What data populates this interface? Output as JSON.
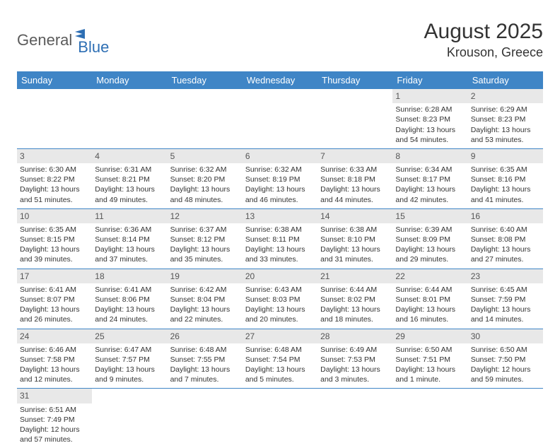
{
  "logo": {
    "text1": "General",
    "text2": "Blue"
  },
  "title": "August 2025",
  "location": "Krouson, Greece",
  "colors": {
    "header_bg": "#3f85c6",
    "header_text": "#ffffff",
    "daynum_bg": "#e8e8e8",
    "body_text": "#333333",
    "rule": "#3f85c6",
    "logo_gray": "#5b5b5b",
    "logo_blue": "#2e6fb4"
  },
  "weekdays": [
    "Sunday",
    "Monday",
    "Tuesday",
    "Wednesday",
    "Thursday",
    "Friday",
    "Saturday"
  ],
  "weeks": [
    [
      null,
      null,
      null,
      null,
      null,
      {
        "n": "1",
        "sr": "Sunrise: 6:28 AM",
        "ss": "Sunset: 8:23 PM",
        "d1": "Daylight: 13 hours",
        "d2": "and 54 minutes."
      },
      {
        "n": "2",
        "sr": "Sunrise: 6:29 AM",
        "ss": "Sunset: 8:23 PM",
        "d1": "Daylight: 13 hours",
        "d2": "and 53 minutes."
      }
    ],
    [
      {
        "n": "3",
        "sr": "Sunrise: 6:30 AM",
        "ss": "Sunset: 8:22 PM",
        "d1": "Daylight: 13 hours",
        "d2": "and 51 minutes."
      },
      {
        "n": "4",
        "sr": "Sunrise: 6:31 AM",
        "ss": "Sunset: 8:21 PM",
        "d1": "Daylight: 13 hours",
        "d2": "and 49 minutes."
      },
      {
        "n": "5",
        "sr": "Sunrise: 6:32 AM",
        "ss": "Sunset: 8:20 PM",
        "d1": "Daylight: 13 hours",
        "d2": "and 48 minutes."
      },
      {
        "n": "6",
        "sr": "Sunrise: 6:32 AM",
        "ss": "Sunset: 8:19 PM",
        "d1": "Daylight: 13 hours",
        "d2": "and 46 minutes."
      },
      {
        "n": "7",
        "sr": "Sunrise: 6:33 AM",
        "ss": "Sunset: 8:18 PM",
        "d1": "Daylight: 13 hours",
        "d2": "and 44 minutes."
      },
      {
        "n": "8",
        "sr": "Sunrise: 6:34 AM",
        "ss": "Sunset: 8:17 PM",
        "d1": "Daylight: 13 hours",
        "d2": "and 42 minutes."
      },
      {
        "n": "9",
        "sr": "Sunrise: 6:35 AM",
        "ss": "Sunset: 8:16 PM",
        "d1": "Daylight: 13 hours",
        "d2": "and 41 minutes."
      }
    ],
    [
      {
        "n": "10",
        "sr": "Sunrise: 6:35 AM",
        "ss": "Sunset: 8:15 PM",
        "d1": "Daylight: 13 hours",
        "d2": "and 39 minutes."
      },
      {
        "n": "11",
        "sr": "Sunrise: 6:36 AM",
        "ss": "Sunset: 8:14 PM",
        "d1": "Daylight: 13 hours",
        "d2": "and 37 minutes."
      },
      {
        "n": "12",
        "sr": "Sunrise: 6:37 AM",
        "ss": "Sunset: 8:12 PM",
        "d1": "Daylight: 13 hours",
        "d2": "and 35 minutes."
      },
      {
        "n": "13",
        "sr": "Sunrise: 6:38 AM",
        "ss": "Sunset: 8:11 PM",
        "d1": "Daylight: 13 hours",
        "d2": "and 33 minutes."
      },
      {
        "n": "14",
        "sr": "Sunrise: 6:38 AM",
        "ss": "Sunset: 8:10 PM",
        "d1": "Daylight: 13 hours",
        "d2": "and 31 minutes."
      },
      {
        "n": "15",
        "sr": "Sunrise: 6:39 AM",
        "ss": "Sunset: 8:09 PM",
        "d1": "Daylight: 13 hours",
        "d2": "and 29 minutes."
      },
      {
        "n": "16",
        "sr": "Sunrise: 6:40 AM",
        "ss": "Sunset: 8:08 PM",
        "d1": "Daylight: 13 hours",
        "d2": "and 27 minutes."
      }
    ],
    [
      {
        "n": "17",
        "sr": "Sunrise: 6:41 AM",
        "ss": "Sunset: 8:07 PM",
        "d1": "Daylight: 13 hours",
        "d2": "and 26 minutes."
      },
      {
        "n": "18",
        "sr": "Sunrise: 6:41 AM",
        "ss": "Sunset: 8:06 PM",
        "d1": "Daylight: 13 hours",
        "d2": "and 24 minutes."
      },
      {
        "n": "19",
        "sr": "Sunrise: 6:42 AM",
        "ss": "Sunset: 8:04 PM",
        "d1": "Daylight: 13 hours",
        "d2": "and 22 minutes."
      },
      {
        "n": "20",
        "sr": "Sunrise: 6:43 AM",
        "ss": "Sunset: 8:03 PM",
        "d1": "Daylight: 13 hours",
        "d2": "and 20 minutes."
      },
      {
        "n": "21",
        "sr": "Sunrise: 6:44 AM",
        "ss": "Sunset: 8:02 PM",
        "d1": "Daylight: 13 hours",
        "d2": "and 18 minutes."
      },
      {
        "n": "22",
        "sr": "Sunrise: 6:44 AM",
        "ss": "Sunset: 8:01 PM",
        "d1": "Daylight: 13 hours",
        "d2": "and 16 minutes."
      },
      {
        "n": "23",
        "sr": "Sunrise: 6:45 AM",
        "ss": "Sunset: 7:59 PM",
        "d1": "Daylight: 13 hours",
        "d2": "and 14 minutes."
      }
    ],
    [
      {
        "n": "24",
        "sr": "Sunrise: 6:46 AM",
        "ss": "Sunset: 7:58 PM",
        "d1": "Daylight: 13 hours",
        "d2": "and 12 minutes."
      },
      {
        "n": "25",
        "sr": "Sunrise: 6:47 AM",
        "ss": "Sunset: 7:57 PM",
        "d1": "Daylight: 13 hours",
        "d2": "and 9 minutes."
      },
      {
        "n": "26",
        "sr": "Sunrise: 6:48 AM",
        "ss": "Sunset: 7:55 PM",
        "d1": "Daylight: 13 hours",
        "d2": "and 7 minutes."
      },
      {
        "n": "27",
        "sr": "Sunrise: 6:48 AM",
        "ss": "Sunset: 7:54 PM",
        "d1": "Daylight: 13 hours",
        "d2": "and 5 minutes."
      },
      {
        "n": "28",
        "sr": "Sunrise: 6:49 AM",
        "ss": "Sunset: 7:53 PM",
        "d1": "Daylight: 13 hours",
        "d2": "and 3 minutes."
      },
      {
        "n": "29",
        "sr": "Sunrise: 6:50 AM",
        "ss": "Sunset: 7:51 PM",
        "d1": "Daylight: 13 hours",
        "d2": "and 1 minute."
      },
      {
        "n": "30",
        "sr": "Sunrise: 6:50 AM",
        "ss": "Sunset: 7:50 PM",
        "d1": "Daylight: 12 hours",
        "d2": "and 59 minutes."
      }
    ],
    [
      {
        "n": "31",
        "sr": "Sunrise: 6:51 AM",
        "ss": "Sunset: 7:49 PM",
        "d1": "Daylight: 12 hours",
        "d2": "and 57 minutes."
      },
      null,
      null,
      null,
      null,
      null,
      null
    ]
  ]
}
